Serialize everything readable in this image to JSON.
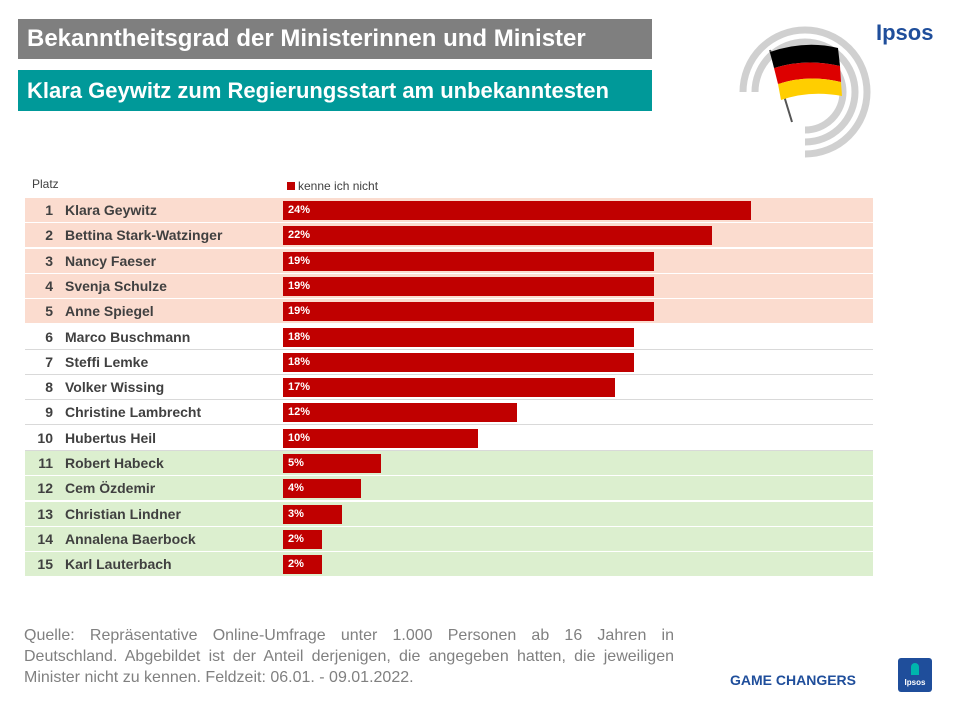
{
  "header": {
    "title": "Bekanntheitsgrad der Ministerinnen und Minister",
    "subtitle": "Klara Geywitz zum Regierungsstart am unbekanntesten",
    "brand": "Ipsos"
  },
  "colors": {
    "bar": "#c00000",
    "top_band": "#fbdccf",
    "bottom_band": "#dcefcf",
    "title_bg": "#7f7f7f",
    "subtitle_bg": "#009999",
    "brand": "#1f4e9b"
  },
  "chart_data": {
    "type": "bar",
    "orientation": "horizontal",
    "rank_header": "Platz",
    "legend": "kenne ich nicht",
    "categories": [
      "Klara Geywitz",
      "Bettina Stark-Watzinger",
      "Nancy Faeser",
      "Svenja Schulze",
      "Anne Spiegel",
      "Marco Buschmann",
      "Steffi Lemke",
      "Volker Wissing",
      "Christine Lambrecht",
      "Hubertus Heil",
      "Robert Habeck",
      "Cem Özdemir",
      "Christian Lindner",
      "Annalena Baerbock",
      "Karl Lauterbach"
    ],
    "ranks": [
      "1",
      "2",
      "3",
      "4",
      "5",
      "6",
      "7",
      "8",
      "9",
      "10",
      "11",
      "12",
      "13",
      "14",
      "15"
    ],
    "series": [
      {
        "name": "kenne ich nicht",
        "values": [
          24,
          22,
          19,
          19,
          19,
          18,
          18,
          17,
          12,
          10,
          5,
          4,
          3,
          2,
          2
        ],
        "labels": [
          "24%",
          "22%",
          "19%",
          "19%",
          "19%",
          "18%",
          "18%",
          "17%",
          "12%",
          "10%",
          "5%",
          "4%",
          "3%",
          "2%",
          "2%"
        ]
      }
    ],
    "bands": [
      "top",
      "top",
      "top",
      "top",
      "top",
      "mid",
      "mid",
      "mid",
      "mid",
      "mid",
      "bottom",
      "bottom",
      "bottom",
      "bottom",
      "bottom"
    ],
    "xlim": [
      0,
      30
    ]
  },
  "footer": {
    "source": "Quelle: Repräsentative Online-Umfrage unter 1.000 Personen ab 16 Jahren in Deutschland. Abgebildet ist der Anteil derjenigen, die angegeben hatten, die jeweiligen Minister nicht zu kennen. Feldzeit: 06.01. - 09.01.2022.",
    "tagline": "GAME CHANGERS",
    "logo_text": "Ipsos"
  }
}
